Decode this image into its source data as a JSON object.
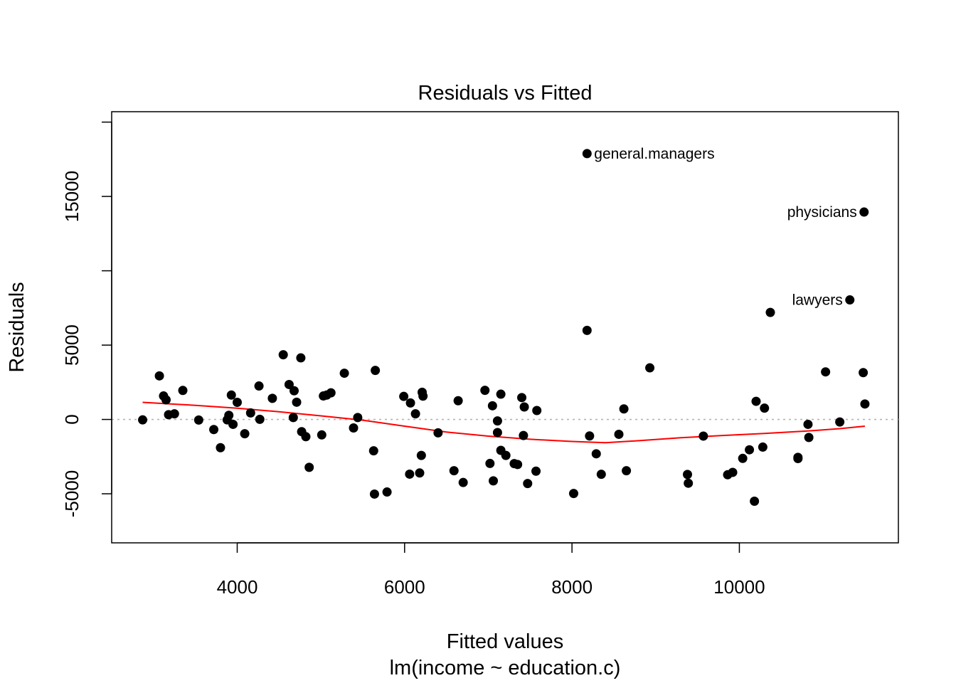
{
  "chart_data": {
    "type": "scatter",
    "title": "Residuals vs Fitted",
    "xlabel": "Fitted values",
    "xlabel2": "lm(income ~ education.c)",
    "ylabel": "Residuals",
    "xlim": [
      2500,
      11900
    ],
    "ylim": [
      -8300,
      20700
    ],
    "x_ticks": [
      4000,
      6000,
      8000,
      10000
    ],
    "x_tick_labels": [
      "4000",
      "6000",
      "8000",
      "10000"
    ],
    "y_ticks": [
      -5000,
      0,
      5000,
      10000,
      15000,
      20000
    ],
    "y_tick_labels": [
      "-5000",
      "0",
      "5000",
      "",
      "15000",
      ""
    ],
    "reference_line": {
      "y": 0,
      "color": "#b3b3b3",
      "style": "dotted"
    },
    "point_color": "#000000",
    "smooth_color": "#ff0000",
    "points": [
      [
        2870,
        -30
      ],
      [
        3070,
        2930
      ],
      [
        3120,
        1580
      ],
      [
        3150,
        1320
      ],
      [
        3180,
        320
      ],
      [
        3250,
        380
      ],
      [
        3350,
        1950
      ],
      [
        3540,
        -40
      ],
      [
        3720,
        -680
      ],
      [
        3800,
        -1900
      ],
      [
        3880,
        -30
      ],
      [
        3900,
        280
      ],
      [
        3930,
        1640
      ],
      [
        3950,
        -330
      ],
      [
        4000,
        1150
      ],
      [
        4090,
        -960
      ],
      [
        4160,
        440
      ],
      [
        4260,
        2250
      ],
      [
        4270,
        10
      ],
      [
        4420,
        1420
      ],
      [
        4550,
        4350
      ],
      [
        4620,
        2350
      ],
      [
        4670,
        130
      ],
      [
        4680,
        1930
      ],
      [
        4710,
        1160
      ],
      [
        4760,
        4140
      ],
      [
        4770,
        -820
      ],
      [
        4820,
        -1160
      ],
      [
        4860,
        -3220
      ],
      [
        5010,
        -1040
      ],
      [
        5030,
        1580
      ],
      [
        5070,
        1640
      ],
      [
        5120,
        1790
      ],
      [
        5280,
        3110
      ],
      [
        5390,
        -570
      ],
      [
        5440,
        130
      ],
      [
        5630,
        -2110
      ],
      [
        5640,
        -5020
      ],
      [
        5650,
        3300
      ],
      [
        5790,
        -4880
      ],
      [
        5990,
        1550
      ],
      [
        6060,
        -3680
      ],
      [
        6070,
        1110
      ],
      [
        6130,
        380
      ],
      [
        6180,
        -3600
      ],
      [
        6200,
        -2420
      ],
      [
        6210,
        1830
      ],
      [
        6220,
        1570
      ],
      [
        6400,
        -900
      ],
      [
        6590,
        -3450
      ],
      [
        6640,
        1260
      ],
      [
        6700,
        -4240
      ],
      [
        6960,
        1960
      ],
      [
        7020,
        -2960
      ],
      [
        7050,
        920
      ],
      [
        7060,
        -4130
      ],
      [
        7110,
        -100
      ],
      [
        7110,
        -880
      ],
      [
        7150,
        1700
      ],
      [
        7150,
        -2080
      ],
      [
        7210,
        -2420
      ],
      [
        7310,
        -2970
      ],
      [
        7350,
        -3030
      ],
      [
        7400,
        1470
      ],
      [
        7420,
        -1080
      ],
      [
        7430,
        840
      ],
      [
        7470,
        -4310
      ],
      [
        7570,
        -3480
      ],
      [
        7580,
        600
      ],
      [
        8020,
        -4980
      ],
      [
        8180,
        5990
      ],
      [
        8210,
        -1110
      ],
      [
        8290,
        -2310
      ],
      [
        8350,
        -3690
      ],
      [
        8560,
        -1000
      ],
      [
        8620,
        710
      ],
      [
        8650,
        -3450
      ],
      [
        8930,
        3470
      ],
      [
        9380,
        -3700
      ],
      [
        9390,
        -4290
      ],
      [
        9570,
        -1120
      ],
      [
        9860,
        -3720
      ],
      [
        9920,
        -3560
      ],
      [
        10040,
        -2620
      ],
      [
        10120,
        -2040
      ],
      [
        10180,
        -5500
      ],
      [
        10200,
        1220
      ],
      [
        10280,
        -1860
      ],
      [
        10300,
        760
      ],
      [
        10370,
        7200
      ],
      [
        10700,
        -2550
      ],
      [
        10700,
        -2630
      ],
      [
        10820,
        -330
      ],
      [
        10830,
        -1210
      ],
      [
        11030,
        3200
      ],
      [
        11200,
        -170
      ],
      [
        11480,
        3150
      ],
      [
        11500,
        1040
      ]
    ],
    "labeled_points": [
      {
        "x": 8180,
        "y": 17880,
        "label": "general.managers",
        "label_side": "right"
      },
      {
        "x": 11490,
        "y": 13950,
        "label": "physicians",
        "label_side": "left"
      },
      {
        "x": 11320,
        "y": 8040,
        "label": "lawyers",
        "label_side": "left"
      }
    ],
    "smooth_curve": [
      [
        2870,
        1150
      ],
      [
        3500,
        950
      ],
      [
        4000,
        760
      ],
      [
        4500,
        520
      ],
      [
        5000,
        240
      ],
      [
        5500,
        -50
      ],
      [
        6000,
        -450
      ],
      [
        6500,
        -850
      ],
      [
        7000,
        -1120
      ],
      [
        7500,
        -1330
      ],
      [
        8000,
        -1480
      ],
      [
        8400,
        -1560
      ],
      [
        8800,
        -1430
      ],
      [
        9300,
        -1230
      ],
      [
        9800,
        -1080
      ],
      [
        10300,
        -940
      ],
      [
        10800,
        -780
      ],
      [
        11200,
        -620
      ],
      [
        11500,
        -450
      ]
    ]
  }
}
